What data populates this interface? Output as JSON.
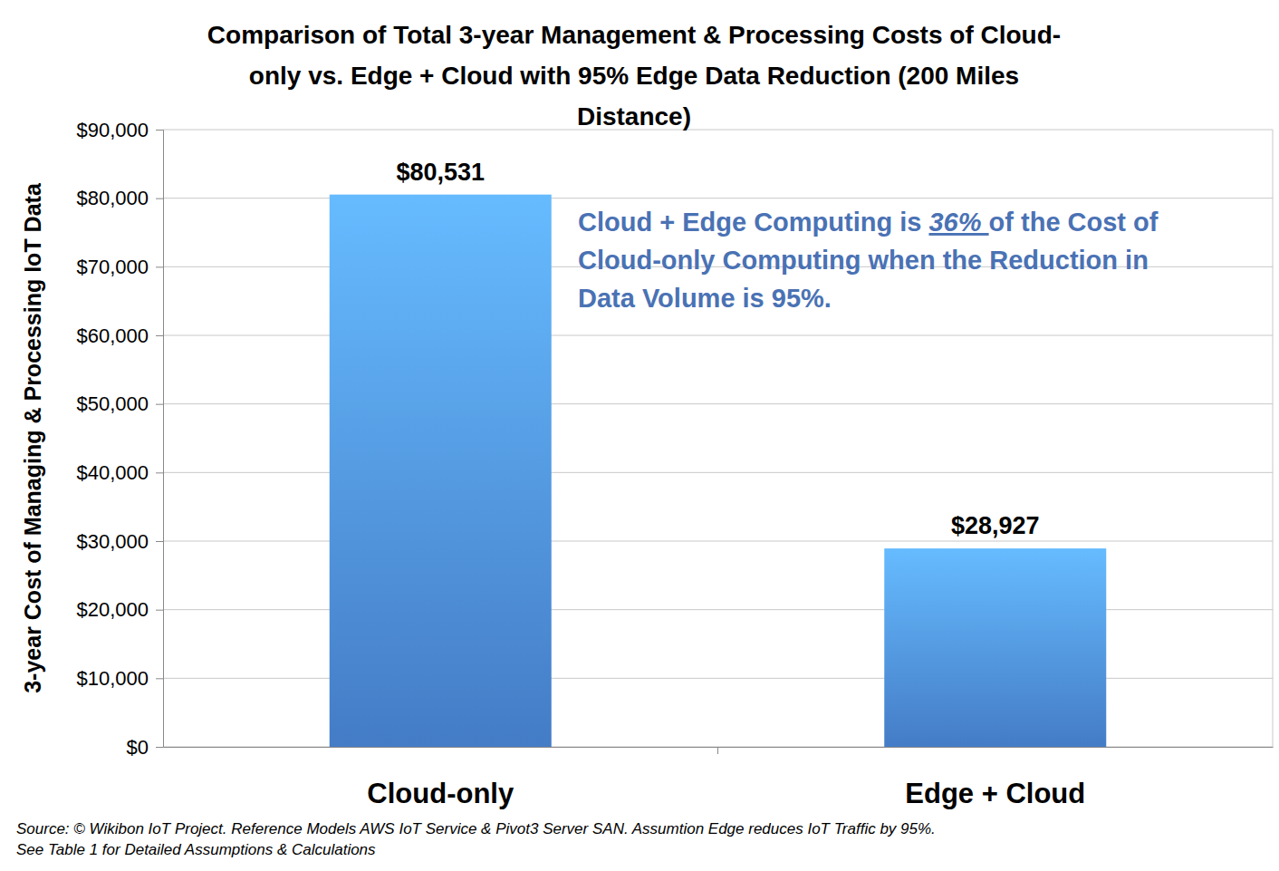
{
  "chart_data": {
    "type": "bar",
    "title": [
      "Comparison of Total 3-year Management & Processing Costs of Cloud-",
      "only vs. Edge + Cloud with 95% Edge Data Reduction (200 Miles",
      "Distance)"
    ],
    "y_label": "3-year Cost of Managing & Processing IoT Data",
    "annotation": [
      [
        "Cloud + Edge Computing is ",
        "36% ",
        "of the Cost of"
      ],
      [
        "Cloud-only Computing when the Reduction in"
      ],
      [
        "Data Volume is 95%."
      ]
    ],
    "source": [
      "Source: © Wikibon IoT Project. Reference Models AWS IoT Service & Pivot3 Server SAN. Assumtion Edge reduces IoT Traffic by 95%.",
      "See Table 1 for Detailed Assumptions & Calculations"
    ],
    "categories": [
      "Cloud-only",
      "Edge + Cloud"
    ],
    "values": [
      80531,
      28927
    ],
    "value_labels": [
      "$80,531",
      "$28,927"
    ],
    "data_labels": true,
    "color": "#4a88d8",
    "ylim": [
      0,
      90000
    ],
    "yticks": [
      {
        "value": 0,
        "label": "$0"
      },
      {
        "value": 10000,
        "label": "$10,000"
      },
      {
        "value": 20000,
        "label": "$20,000"
      },
      {
        "value": 30000,
        "label": "$30,000"
      },
      {
        "value": 40000,
        "label": "$40,000"
      },
      {
        "value": 50000,
        "label": "$50,000"
      },
      {
        "value": 60000,
        "label": "$60,000"
      },
      {
        "value": 70000,
        "label": "$70,000"
      },
      {
        "value": 80000,
        "label": "$80,000"
      },
      {
        "value": 90000,
        "label": "$90,000"
      }
    ],
    "grid": true
  }
}
